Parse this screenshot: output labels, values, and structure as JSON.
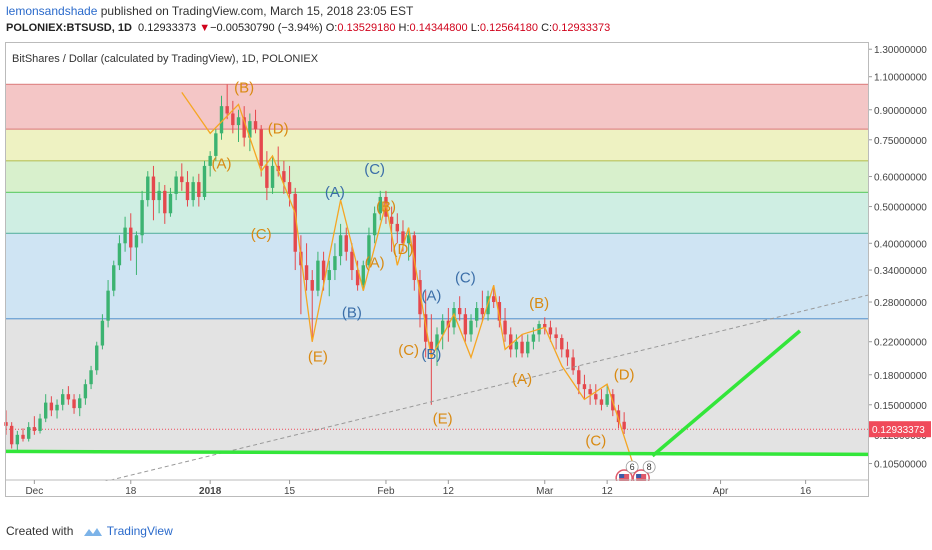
{
  "header": {
    "author": "lemonsandshade",
    "published": " published on TradingView.com, March 15, 2018 23:05 EST",
    "symbol": "POLONIEX:BTSUSD, 1D",
    "last": "0.12933373",
    "change_arrow": "▼",
    "change": "−0.00530790 (−3.94%)",
    "o_label": "O:",
    "o_value": "0.13529180",
    "h_label": "H:",
    "h_value": "0.14344800",
    "l_label": "L:",
    "l_value": "0.12564180",
    "c_label": "C:",
    "c_value": "0.12933373"
  },
  "chart_title": "BitShares / Dollar (calculated by TradingView), 1D, POLONIEX",
  "footer": {
    "created_with": "Created with",
    "brand": "TradingView"
  },
  "colors": {
    "up": "#3cb371",
    "down": "#e5484d",
    "wave_line": "#f5a623",
    "label_orange": "#d98a12",
    "label_blue": "#3b6ea8",
    "trend_green": "#33e63a",
    "price_badge": "#f04a5a"
  },
  "chart_data": {
    "type": "candlestick",
    "title": "BitShares / Dollar (calculated by TradingView), 1D, POLONIEX",
    "y_scale": "log",
    "ylim": [
      0.095,
      1.35
    ],
    "y_ticks": [
      "1.30000000",
      "1.10000000",
      "0.90000000",
      "0.75000000",
      "0.60000000",
      "0.50000000",
      "0.40000000",
      "0.34000000",
      "0.28000000",
      "0.22000000",
      "0.18000000",
      "0.15000000",
      "0.12500000",
      "0.10500000"
    ],
    "x_ticks": [
      {
        "label": "Dec",
        "date": "2017-12-01"
      },
      {
        "label": "18",
        "date": "2017-12-18"
      },
      {
        "label": "2018",
        "date": "2018-01-01"
      },
      {
        "label": "15",
        "date": "2018-01-15"
      },
      {
        "label": "Feb",
        "date": "2018-02-01"
      },
      {
        "label": "12",
        "date": "2018-02-12"
      },
      {
        "label": "Mar",
        "date": "2018-03-01"
      },
      {
        "label": "12",
        "date": "2018-03-12"
      },
      {
        "label": "Apr",
        "date": "2018-04-01"
      },
      {
        "label": "16",
        "date": "2018-04-16"
      }
    ],
    "last_price": "0.12933373",
    "fib_zones": [
      {
        "from": 0.8,
        "to": 1.05,
        "color": "#f4c6c6"
      },
      {
        "from": 0.66,
        "to": 0.8,
        "color": "#eef2c2"
      },
      {
        "from": 0.545,
        "to": 0.66,
        "color": "#d8f0cc"
      },
      {
        "from": 0.425,
        "to": 0.545,
        "color": "#cfeee3"
      },
      {
        "from": 0.253,
        "to": 0.425,
        "color": "#cfe4f3"
      },
      {
        "from": 0.112,
        "to": 0.253,
        "color": "#e3e3e3"
      }
    ],
    "fib_lines": [
      {
        "y": 1.05,
        "color": "#e08a8a"
      },
      {
        "y": 0.8,
        "color": "#e08a8a"
      },
      {
        "y": 0.66,
        "color": "#b7c25b"
      },
      {
        "y": 0.545,
        "color": "#6ccf73"
      },
      {
        "y": 0.425,
        "color": "#5fb4a3"
      },
      {
        "y": 0.253,
        "color": "#6a9fd3"
      }
    ],
    "wave_path": [
      [
        "2017-12-27",
        1.0
      ],
      [
        "2018-01-01",
        0.78
      ],
      [
        "2018-01-06",
        0.93
      ],
      [
        "2018-01-10",
        0.62
      ],
      [
        "2018-01-12",
        0.68
      ],
      [
        "2018-01-16",
        0.48
      ],
      [
        "2018-01-19",
        0.22
      ],
      [
        "2018-01-24",
        0.52
      ],
      [
        "2018-01-28",
        0.3
      ],
      [
        "2018-02-01",
        0.51
      ],
      [
        "2018-02-03",
        0.35
      ],
      [
        "2018-02-05",
        0.44
      ],
      [
        "2018-02-09",
        0.2
      ],
      [
        "2018-02-13",
        0.26
      ],
      [
        "2018-02-16",
        0.2
      ],
      [
        "2018-02-20",
        0.31
      ],
      [
        "2018-02-22",
        0.21
      ],
      [
        "2018-02-25",
        0.23
      ],
      [
        "2018-03-01",
        0.24
      ],
      [
        "2018-03-04",
        0.19
      ],
      [
        "2018-03-08",
        0.155
      ],
      [
        "2018-03-12",
        0.17
      ],
      [
        "2018-03-17",
        0.1
      ]
    ],
    "wave_labels": [
      {
        "text": "(B)",
        "date": "2018-01-07",
        "y": 1.0,
        "color": "orange"
      },
      {
        "text": "(D)",
        "date": "2018-01-13",
        "y": 0.78,
        "color": "orange"
      },
      {
        "text": "(A)",
        "date": "2018-01-03",
        "y": 0.63,
        "color": "orange"
      },
      {
        "text": "(C)",
        "date": "2018-01-10",
        "y": 0.41,
        "color": "orange"
      },
      {
        "text": "(A)",
        "date": "2018-01-23",
        "y": 0.53,
        "color": "blue"
      },
      {
        "text": "(C)",
        "date": "2018-01-30",
        "y": 0.61,
        "color": "blue"
      },
      {
        "text": "(B)",
        "date": "2018-02-01",
        "y": 0.485,
        "color": "orange"
      },
      {
        "text": "(A)",
        "date": "2018-01-30",
        "y": 0.345,
        "color": "orange"
      },
      {
        "text": "(D)",
        "date": "2018-02-04",
        "y": 0.375,
        "color": "orange"
      },
      {
        "text": "(B)",
        "date": "2018-01-26",
        "y": 0.255,
        "color": "blue"
      },
      {
        "text": "(E)",
        "date": "2018-01-20",
        "y": 0.195,
        "color": "orange"
      },
      {
        "text": "(A)",
        "date": "2018-02-09",
        "y": 0.283,
        "color": "blue"
      },
      {
        "text": "(C)",
        "date": "2018-02-15",
        "y": 0.315,
        "color": "blue"
      },
      {
        "text": "(C)",
        "date": "2018-02-05",
        "y": 0.203,
        "color": "orange"
      },
      {
        "text": "(B)",
        "date": "2018-02-09",
        "y": 0.198,
        "color": "blue"
      },
      {
        "text": "(B)",
        "date": "2018-02-28",
        "y": 0.27,
        "color": "orange"
      },
      {
        "text": "(A)",
        "date": "2018-02-25",
        "y": 0.17,
        "color": "orange"
      },
      {
        "text": "(D)",
        "date": "2018-03-15",
        "y": 0.175,
        "color": "orange"
      },
      {
        "text": "(E)",
        "date": "2018-02-11",
        "y": 0.134,
        "color": "orange"
      },
      {
        "text": "(C)",
        "date": "2018-03-10",
        "y": 0.117,
        "color": "orange"
      }
    ],
    "trend_lines": [
      {
        "style": "dashed",
        "color": "#999999",
        "from": [
          "2017-12-12",
          0.093
        ],
        "to": [
          "2018-04-27",
          0.292
        ]
      },
      {
        "style": "solid",
        "color": "#33e63a",
        "from": [
          "2017-11-26",
          0.113
        ],
        "to": [
          "2018-04-27",
          0.111
        ]
      },
      {
        "style": "solid",
        "color": "#33e63a",
        "from": [
          "2018-03-20",
          0.11
        ],
        "to": [
          "2018-04-15",
          0.235
        ]
      }
    ],
    "events": [
      {
        "date": "2018-03-15",
        "badge": "6"
      },
      {
        "date": "2018-03-18",
        "badge": "8"
      }
    ],
    "candles": [
      [
        "2017-11-26",
        0.135,
        0.145,
        0.125,
        0.132
      ],
      [
        "2017-11-27",
        0.132,
        0.135,
        0.115,
        0.118
      ],
      [
        "2017-11-28",
        0.118,
        0.128,
        0.114,
        0.125
      ],
      [
        "2017-11-29",
        0.125,
        0.13,
        0.12,
        0.122
      ],
      [
        "2017-11-30",
        0.122,
        0.135,
        0.12,
        0.131
      ],
      [
        "2017-12-01",
        0.131,
        0.14,
        0.125,
        0.128
      ],
      [
        "2017-12-02",
        0.128,
        0.142,
        0.126,
        0.138
      ],
      [
        "2017-12-03",
        0.138,
        0.16,
        0.135,
        0.152
      ],
      [
        "2017-12-04",
        0.152,
        0.158,
        0.14,
        0.145
      ],
      [
        "2017-12-05",
        0.145,
        0.155,
        0.138,
        0.15
      ],
      [
        "2017-12-06",
        0.15,
        0.165,
        0.145,
        0.16
      ],
      [
        "2017-12-07",
        0.16,
        0.168,
        0.15,
        0.155
      ],
      [
        "2017-12-08",
        0.155,
        0.16,
        0.142,
        0.147
      ],
      [
        "2017-12-09",
        0.147,
        0.16,
        0.14,
        0.156
      ],
      [
        "2017-12-10",
        0.156,
        0.175,
        0.15,
        0.17
      ],
      [
        "2017-12-11",
        0.17,
        0.19,
        0.165,
        0.185
      ],
      [
        "2017-12-12",
        0.185,
        0.22,
        0.18,
        0.215
      ],
      [
        "2017-12-13",
        0.215,
        0.26,
        0.21,
        0.25
      ],
      [
        "2017-12-14",
        0.25,
        0.32,
        0.24,
        0.3
      ],
      [
        "2017-12-15",
        0.3,
        0.36,
        0.29,
        0.35
      ],
      [
        "2017-12-16",
        0.35,
        0.42,
        0.34,
        0.4
      ],
      [
        "2017-12-17",
        0.4,
        0.47,
        0.38,
        0.44
      ],
      [
        "2017-12-18",
        0.44,
        0.48,
        0.36,
        0.39
      ],
      [
        "2017-12-19",
        0.39,
        0.43,
        0.33,
        0.42
      ],
      [
        "2017-12-20",
        0.42,
        0.55,
        0.4,
        0.52
      ],
      [
        "2017-12-21",
        0.52,
        0.62,
        0.5,
        0.6
      ],
      [
        "2017-12-22",
        0.6,
        0.64,
        0.46,
        0.52
      ],
      [
        "2017-12-23",
        0.52,
        0.58,
        0.48,
        0.55
      ],
      [
        "2017-12-24",
        0.55,
        0.57,
        0.45,
        0.48
      ],
      [
        "2017-12-25",
        0.48,
        0.56,
        0.47,
        0.54
      ],
      [
        "2017-12-26",
        0.54,
        0.62,
        0.52,
        0.6
      ],
      [
        "2017-12-27",
        0.6,
        0.65,
        0.55,
        0.58
      ],
      [
        "2017-12-28",
        0.58,
        0.62,
        0.5,
        0.52
      ],
      [
        "2017-12-29",
        0.52,
        0.6,
        0.5,
        0.58
      ],
      [
        "2017-12-30",
        0.58,
        0.61,
        0.5,
        0.53
      ],
      [
        "2017-12-31",
        0.53,
        0.66,
        0.52,
        0.64
      ],
      [
        "2018-01-01",
        0.64,
        0.7,
        0.6,
        0.68
      ],
      [
        "2018-01-02",
        0.68,
        0.8,
        0.66,
        0.78
      ],
      [
        "2018-01-03",
        0.78,
        0.98,
        0.75,
        0.92
      ],
      [
        "2018-01-04",
        0.92,
        1.05,
        0.85,
        0.88
      ],
      [
        "2018-01-05",
        0.88,
        0.95,
        0.78,
        0.82
      ],
      [
        "2018-01-06",
        0.82,
        0.9,
        0.74,
        0.86
      ],
      [
        "2018-01-07",
        0.86,
        0.92,
        0.72,
        0.76
      ],
      [
        "2018-01-08",
        0.76,
        0.88,
        0.7,
        0.84
      ],
      [
        "2018-01-09",
        0.84,
        0.9,
        0.78,
        0.8
      ],
      [
        "2018-01-10",
        0.8,
        0.82,
        0.6,
        0.64
      ],
      [
        "2018-01-11",
        0.64,
        0.7,
        0.52,
        0.56
      ],
      [
        "2018-01-12",
        0.56,
        0.68,
        0.54,
        0.64
      ],
      [
        "2018-01-13",
        0.64,
        0.72,
        0.6,
        0.62
      ],
      [
        "2018-01-14",
        0.62,
        0.66,
        0.54,
        0.58
      ],
      [
        "2018-01-15",
        0.58,
        0.64,
        0.5,
        0.54
      ],
      [
        "2018-01-16",
        0.54,
        0.56,
        0.34,
        0.38
      ],
      [
        "2018-01-17",
        0.38,
        0.42,
        0.26,
        0.35
      ],
      [
        "2018-01-18",
        0.35,
        0.4,
        0.3,
        0.32
      ],
      [
        "2018-01-19",
        0.32,
        0.34,
        0.22,
        0.3
      ],
      [
        "2018-01-20",
        0.3,
        0.38,
        0.29,
        0.36
      ],
      [
        "2018-01-21",
        0.36,
        0.38,
        0.3,
        0.32
      ],
      [
        "2018-01-22",
        0.32,
        0.36,
        0.29,
        0.34
      ],
      [
        "2018-01-23",
        0.34,
        0.4,
        0.32,
        0.37
      ],
      [
        "2018-01-24",
        0.37,
        0.45,
        0.35,
        0.42
      ],
      [
        "2018-01-25",
        0.42,
        0.44,
        0.36,
        0.38
      ],
      [
        "2018-01-26",
        0.38,
        0.4,
        0.32,
        0.34
      ],
      [
        "2018-01-27",
        0.34,
        0.36,
        0.3,
        0.31
      ],
      [
        "2018-01-28",
        0.31,
        0.36,
        0.3,
        0.35
      ],
      [
        "2018-01-29",
        0.35,
        0.44,
        0.34,
        0.42
      ],
      [
        "2018-01-30",
        0.42,
        0.5,
        0.4,
        0.48
      ],
      [
        "2018-01-31",
        0.48,
        0.55,
        0.46,
        0.53
      ],
      [
        "2018-02-01",
        0.53,
        0.55,
        0.45,
        0.47
      ],
      [
        "2018-02-02",
        0.47,
        0.5,
        0.38,
        0.45
      ],
      [
        "2018-02-03",
        0.45,
        0.48,
        0.4,
        0.43
      ],
      [
        "2018-02-04",
        0.43,
        0.46,
        0.38,
        0.4
      ],
      [
        "2018-02-05",
        0.4,
        0.44,
        0.36,
        0.42
      ],
      [
        "2018-02-06",
        0.42,
        0.43,
        0.3,
        0.32
      ],
      [
        "2018-02-07",
        0.32,
        0.34,
        0.24,
        0.26
      ],
      [
        "2018-02-08",
        0.26,
        0.3,
        0.2,
        0.22
      ],
      [
        "2018-02-09",
        0.22,
        0.26,
        0.15,
        0.21
      ],
      [
        "2018-02-10",
        0.21,
        0.24,
        0.19,
        0.23
      ],
      [
        "2018-02-11",
        0.23,
        0.26,
        0.21,
        0.25
      ],
      [
        "2018-02-12",
        0.25,
        0.27,
        0.22,
        0.24
      ],
      [
        "2018-02-13",
        0.24,
        0.28,
        0.23,
        0.27
      ],
      [
        "2018-02-14",
        0.27,
        0.29,
        0.25,
        0.26
      ],
      [
        "2018-02-15",
        0.26,
        0.27,
        0.22,
        0.23
      ],
      [
        "2018-02-16",
        0.23,
        0.26,
        0.22,
        0.25
      ],
      [
        "2018-02-17",
        0.25,
        0.28,
        0.24,
        0.27
      ],
      [
        "2018-02-18",
        0.27,
        0.3,
        0.25,
        0.26
      ],
      [
        "2018-02-19",
        0.26,
        0.3,
        0.25,
        0.29
      ],
      [
        "2018-02-20",
        0.29,
        0.31,
        0.27,
        0.28
      ],
      [
        "2018-02-21",
        0.28,
        0.29,
        0.24,
        0.25
      ],
      [
        "2018-02-22",
        0.25,
        0.27,
        0.22,
        0.23
      ],
      [
        "2018-02-23",
        0.23,
        0.24,
        0.2,
        0.21
      ],
      [
        "2018-02-24",
        0.21,
        0.23,
        0.2,
        0.22
      ],
      [
        "2018-02-25",
        0.22,
        0.23,
        0.2,
        0.205
      ],
      [
        "2018-02-26",
        0.205,
        0.23,
        0.2,
        0.22
      ],
      [
        "2018-02-27",
        0.22,
        0.24,
        0.21,
        0.23
      ],
      [
        "2018-02-28",
        0.23,
        0.25,
        0.22,
        0.245
      ],
      [
        "2018-03-01",
        0.245,
        0.255,
        0.23,
        0.24
      ],
      [
        "2018-03-02",
        0.24,
        0.25,
        0.22,
        0.23
      ],
      [
        "2018-03-03",
        0.23,
        0.24,
        0.21,
        0.225
      ],
      [
        "2018-03-04",
        0.225,
        0.23,
        0.2,
        0.21
      ],
      [
        "2018-03-05",
        0.21,
        0.22,
        0.19,
        0.2
      ],
      [
        "2018-03-06",
        0.2,
        0.21,
        0.18,
        0.185
      ],
      [
        "2018-03-07",
        0.185,
        0.19,
        0.16,
        0.17
      ],
      [
        "2018-03-08",
        0.17,
        0.18,
        0.155,
        0.165
      ],
      [
        "2018-03-09",
        0.165,
        0.17,
        0.15,
        0.16
      ],
      [
        "2018-03-10",
        0.16,
        0.17,
        0.15,
        0.155
      ],
      [
        "2018-03-11",
        0.155,
        0.165,
        0.145,
        0.15
      ],
      [
        "2018-03-12",
        0.15,
        0.17,
        0.148,
        0.16
      ],
      [
        "2018-03-13",
        0.16,
        0.165,
        0.14,
        0.145
      ],
      [
        "2018-03-14",
        0.145,
        0.15,
        0.13,
        0.135
      ],
      [
        "2018-03-15",
        0.1353,
        0.1434,
        0.1256,
        0.1293
      ]
    ]
  }
}
